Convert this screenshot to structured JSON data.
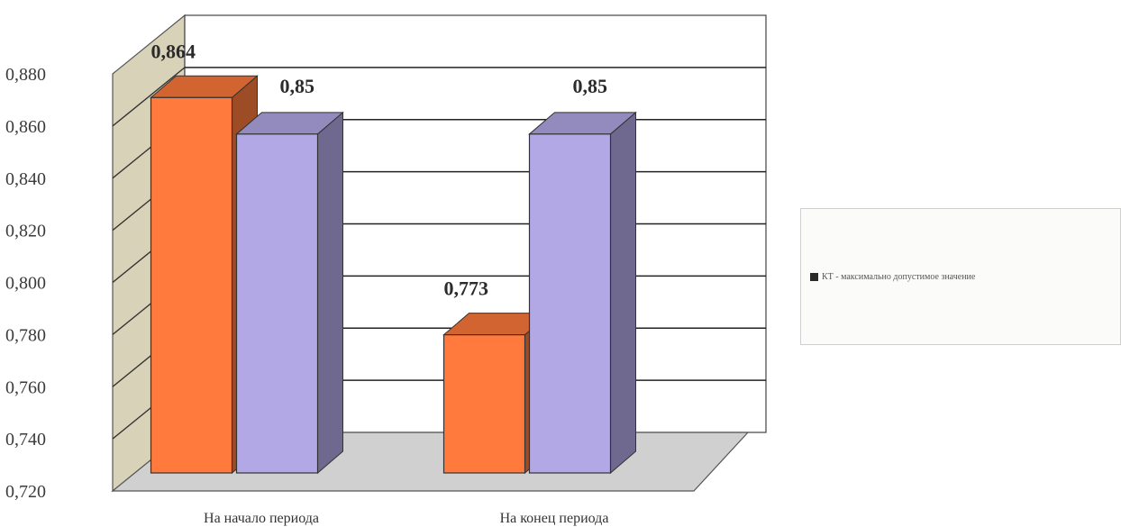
{
  "chart_data": {
    "type": "bar",
    "categories": [
      "На начало периода",
      "На конец периода"
    ],
    "series": [
      {
        "values": [
          0.864,
          0.773
        ],
        "color": "#ff7a3c",
        "labels": [
          "0,864",
          "0,773"
        ]
      },
      {
        "values": [
          0.85,
          0.85
        ],
        "color": "#b3a8e6",
        "labels": [
          "0,85",
          "0,85"
        ]
      }
    ],
    "y_ticks": [
      "0,880",
      "0,860",
      "0,840",
      "0,820",
      "0,800",
      "0,780",
      "0,760",
      "0,740",
      "0,720"
    ],
    "ylim": [
      0.72,
      0.88
    ],
    "grid": true,
    "three_d": true,
    "legend": {
      "position": "right",
      "text": "КТ - максимально допустимое значение"
    }
  }
}
